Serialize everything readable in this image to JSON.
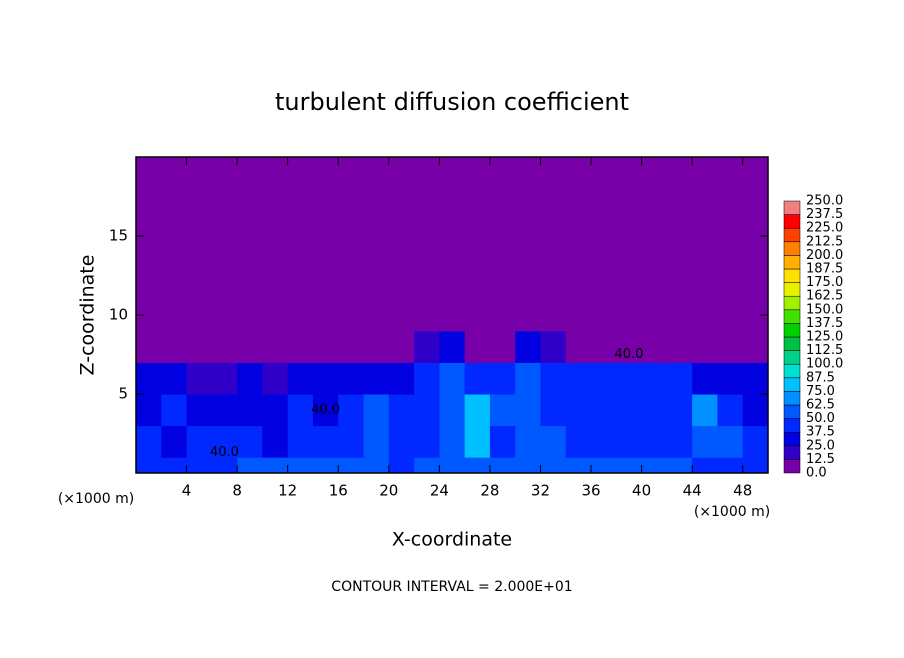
{
  "chart_data": {
    "type": "heatmap",
    "title": "turbulent diffusion coefficient",
    "x_label": "X-coordinate",
    "y_label": "Z-coordinate",
    "x_unit_left": "(×1000 m)",
    "x_unit_right": "(×1000 m)",
    "footnote": "CONTOUR INTERVAL = 2.000E+01",
    "xlim": [
      0,
      50
    ],
    "ylim": [
      0,
      20
    ],
    "xticks": [
      4,
      8,
      12,
      16,
      20,
      24,
      28,
      32,
      36,
      40,
      44,
      48
    ],
    "yticks": [
      5,
      10,
      15
    ],
    "xbins": [
      0,
      2,
      4,
      6,
      8,
      10,
      12,
      14,
      16,
      18,
      20,
      22,
      24,
      26,
      28,
      30,
      32,
      34,
      36,
      38,
      40,
      42,
      44,
      46,
      48,
      50
    ],
    "zbins": [
      0,
      1,
      3,
      5,
      7,
      9,
      20
    ],
    "values": [
      [
        45,
        45,
        40,
        45,
        50,
        50,
        55,
        55,
        50,
        50,
        45,
        50,
        55,
        50,
        55,
        60,
        50,
        55,
        55,
        50,
        50,
        50,
        45,
        45,
        40
      ],
      [
        40,
        35,
        45,
        40,
        45,
        35,
        40,
        40,
        45,
        55,
        40,
        45,
        50,
        80,
        45,
        55,
        50,
        45,
        45,
        45,
        40,
        45,
        55,
        50,
        45
      ],
      [
        30,
        40,
        30,
        25,
        30,
        35,
        40,
        30,
        45,
        50,
        45,
        40,
        55,
        85,
        50,
        50,
        40,
        45,
        40,
        40,
        45,
        45,
        70,
        40,
        35
      ],
      [
        35,
        25,
        20,
        20,
        25,
        20,
        25,
        30,
        30,
        30,
        35,
        45,
        50,
        45,
        45,
        55,
        45,
        40,
        40,
        40,
        40,
        45,
        35,
        30,
        35
      ],
      [
        0,
        0,
        0,
        0,
        0,
        0,
        0,
        0,
        0,
        0,
        0,
        15,
        25,
        10,
        0,
        25,
        20,
        10,
        0,
        0,
        0,
        0,
        0,
        0,
        0
      ],
      [
        0,
        0,
        0,
        0,
        0,
        0,
        0,
        0,
        0,
        0,
        0,
        0,
        0,
        0,
        0,
        0,
        0,
        0,
        0,
        0,
        0,
        0,
        0,
        0,
        0
      ]
    ],
    "contour_labels": [
      {
        "text": "40.0",
        "x": 7,
        "z": 1.3
      },
      {
        "text": "40.0",
        "x": 15,
        "z": 4
      },
      {
        "text": "40.0",
        "x": 39,
        "z": 7.5
      }
    ],
    "colorbar_ticks": [
      {
        "value": 0,
        "label": "0.0"
      },
      {
        "value": 12.5,
        "label": "12.5"
      },
      {
        "value": 25,
        "label": "25.0"
      },
      {
        "value": 37.5,
        "label": "37.5"
      },
      {
        "value": 50,
        "label": "50.0"
      },
      {
        "value": 62.5,
        "label": "62.5"
      },
      {
        "value": 75,
        "label": "75.0"
      },
      {
        "value": 87.5,
        "label": "87.5"
      },
      {
        "value": 100,
        "label": "100.0"
      },
      {
        "value": 112.5,
        "label": "112.5"
      },
      {
        "value": 125,
        "label": "125.0"
      },
      {
        "value": 137.5,
        "label": "137.5"
      },
      {
        "value": 150,
        "label": "150.0"
      },
      {
        "value": 162.5,
        "label": "162.5"
      },
      {
        "value": 175,
        "label": "175.0"
      },
      {
        "value": 187.5,
        "label": "187.5"
      },
      {
        "value": 200,
        "label": "200.0"
      },
      {
        "value": 212.5,
        "label": "212.5"
      },
      {
        "value": 225,
        "label": "225.0"
      },
      {
        "value": 237.5,
        "label": "237.5"
      },
      {
        "value": 250,
        "label": "250.0"
      }
    ],
    "colorscale": [
      "#7800a8",
      "#3000c8",
      "#0000e0",
      "#0028ff",
      "#0058ff",
      "#0090ff",
      "#00c0ff",
      "#00e0d0",
      "#00d088",
      "#00c048",
      "#00d000",
      "#40e000",
      "#a0f000",
      "#e8f000",
      "#ffe000",
      "#ffb000",
      "#ff8000",
      "#ff4000",
      "#ff0000",
      "#f08080"
    ]
  }
}
